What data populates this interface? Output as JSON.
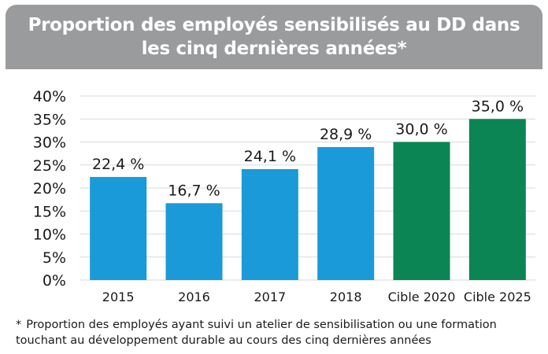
{
  "header": {
    "title": "Proportion des employés sensibilisés au DD dans les cinq dernières années*"
  },
  "chart_data": {
    "type": "bar",
    "title": "Proportion des employés sensibilisés au DD dans les cinq dernières années*",
    "categories": [
      "2015",
      "2016",
      "2017",
      "2018",
      "Cible 2020",
      "Cible 2025"
    ],
    "values": [
      22.4,
      16.7,
      24.1,
      28.9,
      30.0,
      35.0
    ],
    "data_labels": [
      "22,4 %",
      "16,7 %",
      "24,1 %",
      "28,9 %",
      "30,0 %",
      "35,0 %"
    ],
    "bar_colors": [
      "#1a9ad9",
      "#1a9ad9",
      "#1a9ad9",
      "#1a9ad9",
      "#0a8553",
      "#0a8553"
    ],
    "ylim": [
      0,
      40
    ],
    "yticks": [
      0,
      5,
      10,
      15,
      20,
      25,
      30,
      35,
      40
    ],
    "ytick_labels": [
      "0%",
      "5%",
      "10%",
      "15%",
      "20%",
      "25%",
      "30%",
      "35%",
      "40%"
    ],
    "grid": true,
    "xlabel": "",
    "ylabel": ""
  },
  "footnote": {
    "marker": "*",
    "text": "Proportion des employés ayant suivi un atelier de sensibilisation ou une formation touchant au développement durable au cours des cinq dernières années"
  },
  "colors": {
    "header_bg": "#9a9b9d",
    "actual": "#1a9ad9",
    "target": "#0a8553",
    "grid": "#d9d9d9"
  }
}
